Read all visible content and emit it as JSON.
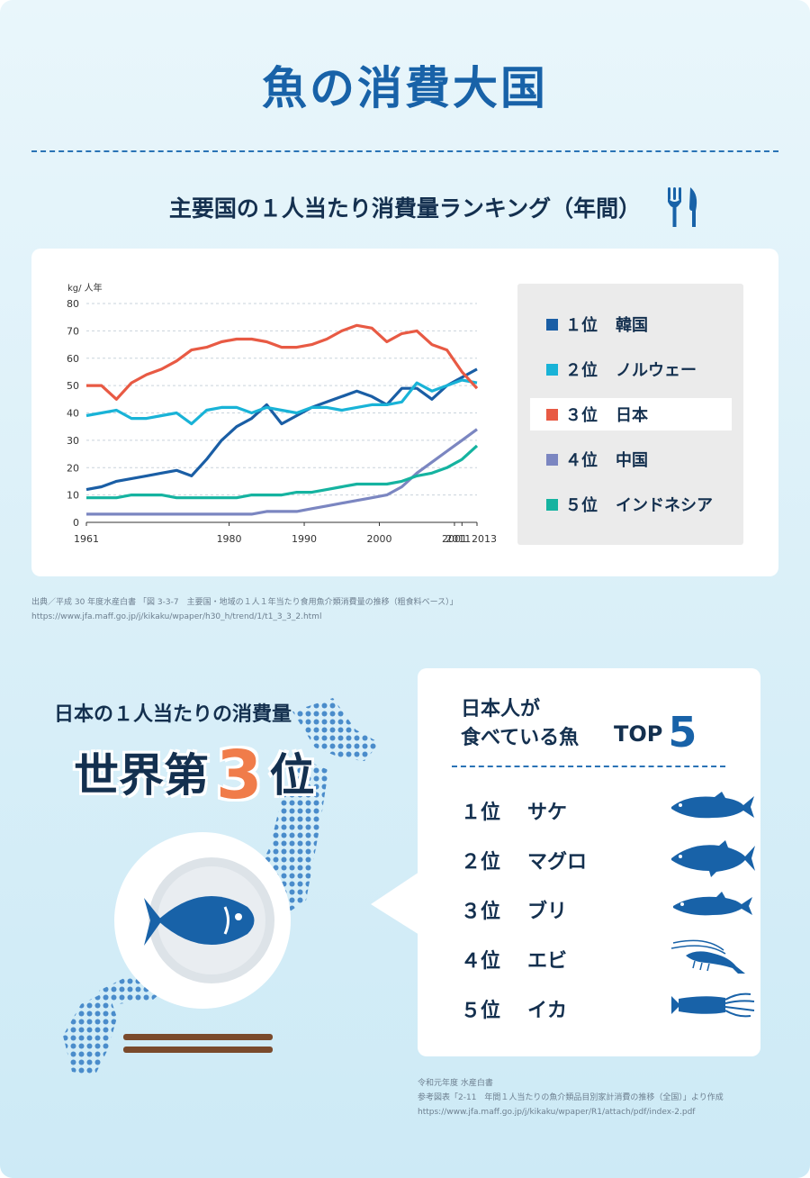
{
  "title": "魚の消費大国",
  "subtitle": "主要国の１人当たり消費量ランキング（年間）",
  "icons": {
    "cutlery": "fork-knife-icon",
    "plate": "plate-fish-icon",
    "chopsticks": "chopsticks-icon",
    "map": "japan-map-dots"
  },
  "colors": {
    "accent": "#1862a8",
    "dark": "#14304f",
    "orange": "#f07c4a"
  },
  "chart_data": {
    "type": "line",
    "ylabel": "kg/ 人年",
    "ylim": [
      0,
      80
    ],
    "yticks": [
      "0",
      "10",
      "20",
      "30",
      "40",
      "50",
      "60",
      "70",
      "80"
    ],
    "xticks": [
      "1961",
      "1980",
      "1990",
      "2000",
      "2001",
      "2011",
      "2013"
    ],
    "grid": true,
    "legend_position": "right",
    "x": [
      1961,
      1963,
      1965,
      1967,
      1969,
      1971,
      1973,
      1975,
      1977,
      1979,
      1981,
      1983,
      1985,
      1987,
      1989,
      1991,
      1993,
      1995,
      1997,
      1999,
      2001,
      2003,
      2005,
      2007,
      2009,
      2011,
      2013
    ],
    "series": [
      {
        "name": "韓国",
        "color": "#1a5ea5",
        "values": [
          12,
          13,
          15,
          16,
          17,
          18,
          19,
          17,
          23,
          30,
          35,
          38,
          43,
          36,
          39,
          42,
          44,
          46,
          48,
          46,
          43,
          49,
          49,
          45,
          50,
          53,
          56
        ]
      },
      {
        "name": "ノルウェー",
        "color": "#19b3d7",
        "values": [
          39,
          40,
          41,
          38,
          38,
          39,
          40,
          36,
          41,
          42,
          42,
          40,
          42,
          41,
          40,
          42,
          42,
          41,
          42,
          43,
          43,
          44,
          51,
          48,
          50,
          52,
          51
        ]
      },
      {
        "name": "日本",
        "color": "#e85a44",
        "values": [
          50,
          50,
          45,
          51,
          54,
          56,
          59,
          63,
          64,
          66,
          67,
          67,
          66,
          64,
          64,
          65,
          67,
          70,
          72,
          71,
          66,
          69,
          70,
          65,
          63,
          55,
          49
        ]
      },
      {
        "name": "中国",
        "color": "#7b86c1",
        "values": [
          3,
          3,
          3,
          3,
          3,
          3,
          3,
          3,
          3,
          3,
          3,
          3,
          4,
          4,
          4,
          5,
          6,
          7,
          8,
          9,
          10,
          13,
          18,
          22,
          26,
          30,
          34
        ]
      },
      {
        "name": "インドネシア",
        "color": "#15b3a0",
        "values": [
          9,
          9,
          9,
          10,
          10,
          10,
          9,
          9,
          9,
          9,
          9,
          10,
          10,
          10,
          11,
          11,
          12,
          13,
          14,
          14,
          14,
          15,
          17,
          18,
          20,
          23,
          28
        ]
      }
    ]
  },
  "legend": [
    {
      "rank": "１位",
      "name": "韓国",
      "color": "#1a5ea5"
    },
    {
      "rank": "２位",
      "name": "ノルウェー",
      "color": "#19b3d7"
    },
    {
      "rank": "３位",
      "name": "日本",
      "color": "#e85a44",
      "highlight": true
    },
    {
      "rank": "４位",
      "name": "中国",
      "color": "#7b86c1"
    },
    {
      "rank": "５位",
      "name": "インドネシア",
      "color": "#15b3a0"
    }
  ],
  "source1": {
    "line1": "出典／平成 30 年度水産白書 「図 3-3-7　主要国・地域の１人１年当たり食用魚介類消費量の推移（粗食料ベース）」",
    "line2": "https://www.jfa.maff.go.jp/j/kikaku/wpaper/h30_h/trend/1/t1_3_3_2.html"
  },
  "japan": {
    "subtitle": "日本の１人当たりの消費量",
    "big_pre": "世界第",
    "big_num": "3",
    "big_post": "位"
  },
  "top5": {
    "title_line1": "日本人が",
    "title_line2": "食べている魚",
    "badge": "TOP",
    "badge_num": "5",
    "items": [
      {
        "rank": "１位",
        "name": "サケ",
        "icon": "salmon-icon"
      },
      {
        "rank": "２位",
        "name": "マグロ",
        "icon": "tuna-icon"
      },
      {
        "rank": "３位",
        "name": "ブリ",
        "icon": "yellowtail-icon"
      },
      {
        "rank": "４位",
        "name": "エビ",
        "icon": "shrimp-icon"
      },
      {
        "rank": "５位",
        "name": "イカ",
        "icon": "squid-icon"
      }
    ]
  },
  "source2": {
    "line1": "令和元年度 水産白書",
    "line2": "参考図表「2-11　年間１人当たりの魚介類品目別家計消費の推移（全国）」より作成",
    "line3": "https://www.jfa.maff.go.jp/j/kikaku/wpaper/R1/attach/pdf/index-2.pdf"
  }
}
